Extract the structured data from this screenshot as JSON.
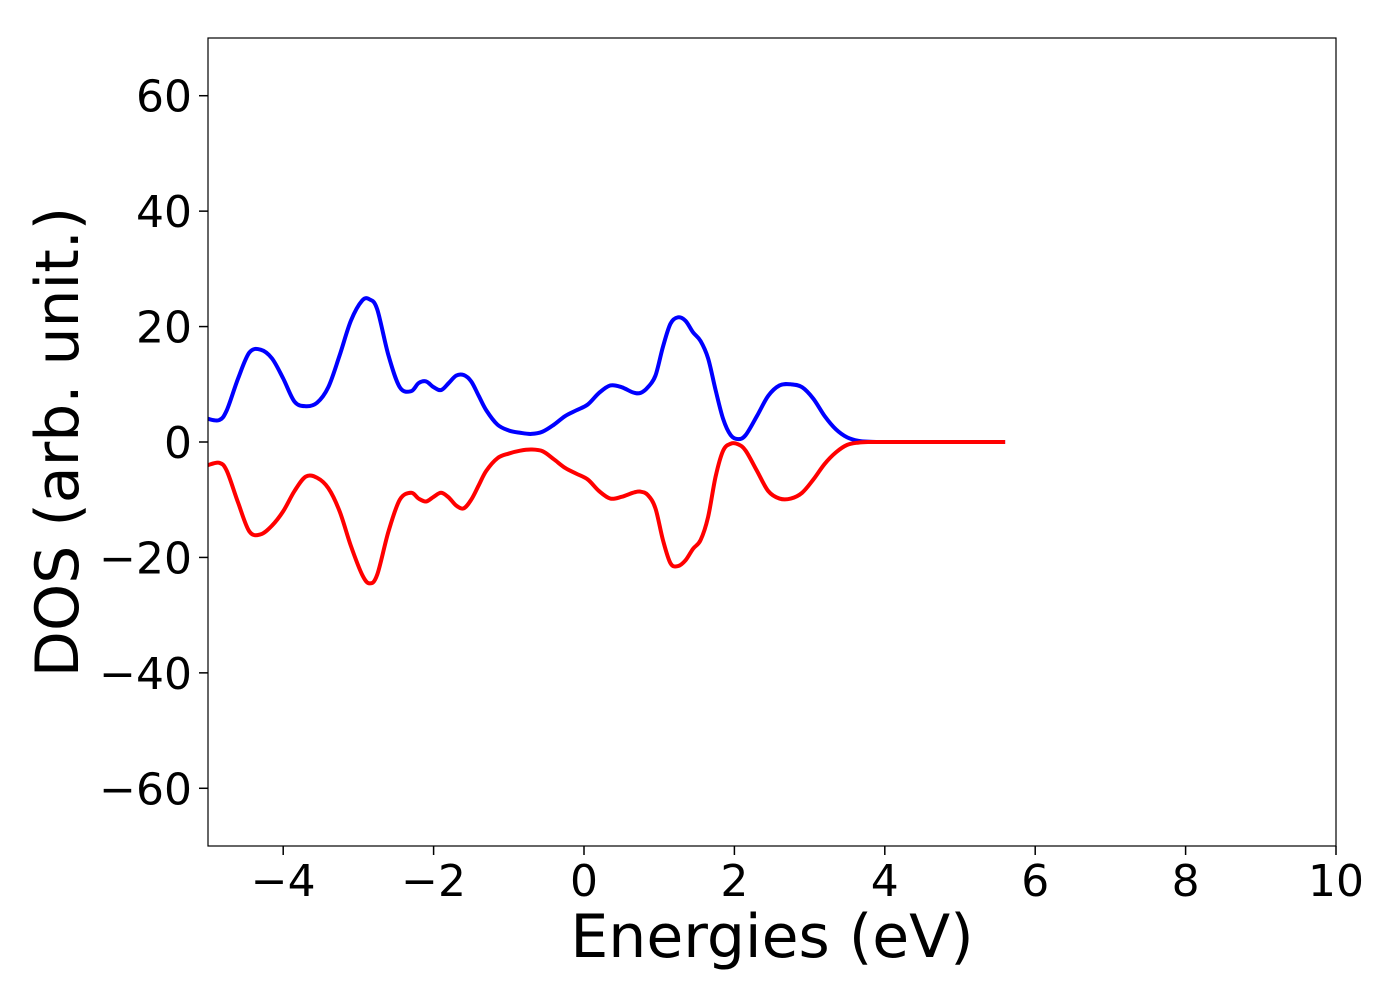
{
  "chart_data": {
    "type": "line",
    "title": "",
    "xlabel": "Energies (eV)",
    "ylabel": "DOS (arb. unit.)",
    "xlim": [
      -5,
      10
    ],
    "ylim": [
      -70,
      70
    ],
    "xticks": [
      -4,
      -2,
      0,
      2,
      4,
      6,
      8,
      10
    ],
    "yticks": [
      -60,
      -40,
      -20,
      0,
      20,
      40,
      60
    ],
    "xtick_labels": [
      "−4",
      "−2",
      "0",
      "2",
      "4",
      "6",
      "8",
      "10"
    ],
    "ytick_labels": [
      "−60",
      "−40",
      "−20",
      "0",
      "20",
      "40",
      "60"
    ],
    "grid": false,
    "legend": "none",
    "series": [
      {
        "color": "#0000ff",
        "x": [
          -5.0,
          -4.85,
          -4.75,
          -4.6,
          -4.45,
          -4.3,
          -4.15,
          -4.0,
          -3.85,
          -3.7,
          -3.55,
          -3.4,
          -3.25,
          -3.1,
          -2.95,
          -2.85,
          -2.75,
          -2.6,
          -2.45,
          -2.3,
          -2.2,
          -2.1,
          -2.0,
          -1.9,
          -1.8,
          -1.7,
          -1.6,
          -1.5,
          -1.4,
          -1.3,
          -1.15,
          -1.0,
          -0.85,
          -0.7,
          -0.55,
          -0.4,
          -0.25,
          -0.1,
          0.05,
          0.2,
          0.35,
          0.5,
          0.65,
          0.75,
          0.85,
          0.95,
          1.05,
          1.15,
          1.25,
          1.35,
          1.45,
          1.55,
          1.65,
          1.75,
          1.85,
          1.95,
          2.05,
          2.15,
          2.3,
          2.45,
          2.6,
          2.75,
          2.9,
          3.05,
          3.2,
          3.35,
          3.5,
          3.65,
          3.8,
          4.0,
          4.5,
          5.0,
          5.6
        ],
        "y": [
          4.0,
          3.8,
          5.5,
          11.0,
          15.5,
          16.0,
          14.5,
          11.0,
          7.0,
          6.2,
          6.8,
          9.5,
          15.0,
          21.0,
          24.5,
          24.7,
          23.0,
          15.0,
          9.5,
          8.8,
          10.2,
          10.5,
          9.5,
          9.0,
          10.2,
          11.5,
          11.6,
          10.5,
          8.0,
          5.5,
          3.0,
          2.0,
          1.6,
          1.4,
          1.8,
          3.0,
          4.5,
          5.5,
          6.5,
          8.5,
          9.8,
          9.5,
          8.6,
          8.5,
          9.5,
          11.5,
          16.5,
          20.5,
          21.6,
          21.0,
          19.0,
          17.5,
          14.5,
          9.0,
          4.0,
          1.2,
          0.5,
          1.2,
          4.5,
          8.0,
          9.8,
          10.0,
          9.5,
          7.5,
          4.5,
          2.2,
          0.8,
          0.2,
          0.05,
          0.0,
          0.0,
          0.0,
          0.0
        ]
      },
      {
        "color": "#ff0000",
        "x": [
          -5.0,
          -4.85,
          -4.75,
          -4.6,
          -4.45,
          -4.3,
          -4.15,
          -4.0,
          -3.85,
          -3.7,
          -3.55,
          -3.4,
          -3.25,
          -3.1,
          -2.95,
          -2.85,
          -2.75,
          -2.6,
          -2.45,
          -2.3,
          -2.2,
          -2.1,
          -2.0,
          -1.9,
          -1.8,
          -1.7,
          -1.6,
          -1.5,
          -1.4,
          -1.3,
          -1.15,
          -1.0,
          -0.85,
          -0.7,
          -0.55,
          -0.4,
          -0.25,
          -0.1,
          0.05,
          0.2,
          0.35,
          0.5,
          0.65,
          0.75,
          0.85,
          0.95,
          1.05,
          1.15,
          1.25,
          1.35,
          1.45,
          1.55,
          1.65,
          1.75,
          1.85,
          1.95,
          2.05,
          2.15,
          2.3,
          2.45,
          2.6,
          2.75,
          2.9,
          3.05,
          3.2,
          3.35,
          3.5,
          3.65,
          3.8,
          4.0,
          4.5,
          5.0,
          5.6
        ],
        "y": [
          -4.0,
          -3.6,
          -5.0,
          -10.5,
          -15.5,
          -16.0,
          -14.5,
          -12.0,
          -8.5,
          -6.0,
          -6.2,
          -8.0,
          -12.0,
          -18.0,
          -23.0,
          -24.5,
          -23.0,
          -15.5,
          -10.0,
          -8.8,
          -9.8,
          -10.3,
          -9.5,
          -8.8,
          -9.6,
          -11.0,
          -11.5,
          -10.0,
          -7.5,
          -5.0,
          -2.8,
          -2.0,
          -1.5,
          -1.3,
          -1.6,
          -3.0,
          -4.5,
          -5.5,
          -6.5,
          -8.5,
          -9.8,
          -9.5,
          -8.8,
          -8.6,
          -9.2,
          -11.5,
          -17.0,
          -21.0,
          -21.5,
          -20.5,
          -18.5,
          -17.0,
          -13.0,
          -6.0,
          -1.5,
          -0.3,
          -0.4,
          -1.5,
          -5.0,
          -8.5,
          -9.8,
          -9.8,
          -8.8,
          -6.5,
          -3.8,
          -1.8,
          -0.5,
          -0.1,
          0.0,
          0.0,
          0.0,
          0.0,
          0.0
        ]
      }
    ]
  }
}
